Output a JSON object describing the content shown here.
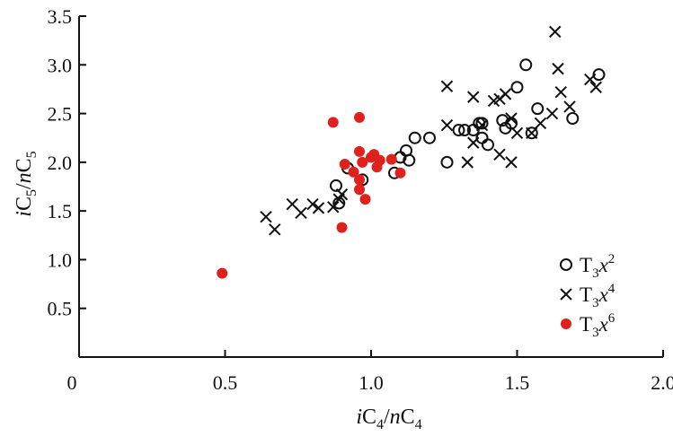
{
  "chart_data": {
    "type": "scatter",
    "title": "",
    "xlim": [
      0,
      2.0
    ],
    "ylim": [
      0,
      3.5
    ],
    "x_ticks": [
      {
        "value": 0,
        "label": "0"
      },
      {
        "value": 0.5,
        "label": "0.5"
      },
      {
        "value": 1.0,
        "label": "1.0"
      },
      {
        "value": 1.5,
        "label": "1.5"
      },
      {
        "value": 2.0,
        "label": "2.0"
      }
    ],
    "y_ticks": [
      {
        "value": 0.5,
        "label": "0.5"
      },
      {
        "value": 1.0,
        "label": "1.0"
      },
      {
        "value": 1.5,
        "label": "1.5"
      },
      {
        "value": 2.0,
        "label": "2.0"
      },
      {
        "value": 2.5,
        "label": "2.5"
      },
      {
        "value": 3.0,
        "label": "3.0"
      },
      {
        "value": 3.5,
        "label": "3.5"
      }
    ],
    "xlabel": {
      "i": "i",
      "c1": "C",
      "s1": "4",
      "slash": "/",
      "n": "n",
      "c2": "C",
      "s2": "4"
    },
    "ylabel": {
      "i": "i",
      "c1": "C",
      "s1": "5",
      "slash": "/",
      "n": "n",
      "c2": "C",
      "s2": "5"
    },
    "grid": false,
    "legend_position": "bottom-right",
    "colors": {
      "axis": "#111111",
      "circle": "#111111",
      "cross": "#111111",
      "dot": "#e0201c"
    },
    "series": [
      {
        "marker": "circle",
        "legend": {
          "base": "T",
          "sub": "3",
          "var": "x",
          "sup": "2"
        },
        "points": [
          [
            0.88,
            1.76
          ],
          [
            0.89,
            1.58
          ],
          [
            0.92,
            1.94
          ],
          [
            0.97,
            1.82
          ],
          [
            1.08,
            1.89
          ],
          [
            1.1,
            2.05
          ],
          [
            1.12,
            2.12
          ],
          [
            1.13,
            2.02
          ],
          [
            1.15,
            2.25
          ],
          [
            1.2,
            2.25
          ],
          [
            1.26,
            2.0
          ],
          [
            1.3,
            2.33
          ],
          [
            1.32,
            2.33
          ],
          [
            1.35,
            2.33
          ],
          [
            1.37,
            2.4
          ],
          [
            1.38,
            2.4
          ],
          [
            1.38,
            2.25
          ],
          [
            1.4,
            2.18
          ],
          [
            1.45,
            2.43
          ],
          [
            1.46,
            2.35
          ],
          [
            1.48,
            2.4
          ],
          [
            1.5,
            2.77
          ],
          [
            1.53,
            3.0
          ],
          [
            1.55,
            2.3
          ],
          [
            1.57,
            2.55
          ],
          [
            1.69,
            2.45
          ],
          [
            1.78,
            2.9
          ]
        ]
      },
      {
        "marker": "cross",
        "legend": {
          "base": "T",
          "sub": "3",
          "var": "x",
          "sup": "4"
        },
        "points": [
          [
            0.64,
            1.44
          ],
          [
            0.67,
            1.31
          ],
          [
            0.73,
            1.57
          ],
          [
            0.76,
            1.48
          ],
          [
            0.8,
            1.57
          ],
          [
            0.82,
            1.53
          ],
          [
            0.87,
            1.54
          ],
          [
            0.89,
            1.62
          ],
          [
            0.9,
            1.67
          ],
          [
            1.26,
            2.78
          ],
          [
            1.26,
            2.38
          ],
          [
            1.33,
            2.0
          ],
          [
            1.35,
            2.2
          ],
          [
            1.35,
            2.67
          ],
          [
            1.38,
            2.38
          ],
          [
            1.42,
            2.63
          ],
          [
            1.44,
            2.65
          ],
          [
            1.44,
            2.08
          ],
          [
            1.46,
            2.7
          ],
          [
            1.48,
            2.45
          ],
          [
            1.48,
            2.0
          ],
          [
            1.5,
            2.3
          ],
          [
            1.55,
            2.3
          ],
          [
            1.58,
            2.4
          ],
          [
            1.62,
            2.5
          ],
          [
            1.63,
            3.34
          ],
          [
            1.64,
            2.96
          ],
          [
            1.65,
            2.72
          ],
          [
            1.68,
            2.57
          ],
          [
            1.75,
            2.85
          ],
          [
            1.77,
            2.77
          ]
        ]
      },
      {
        "marker": "filled-circle",
        "legend": {
          "base": "T",
          "sub": "3",
          "var": "x",
          "sup": "6"
        },
        "points": [
          [
            0.49,
            0.86
          ],
          [
            0.87,
            2.41
          ],
          [
            0.9,
            1.33
          ],
          [
            0.91,
            1.98
          ],
          [
            0.94,
            1.9
          ],
          [
            0.96,
            2.46
          ],
          [
            0.96,
            2.11
          ],
          [
            0.96,
            1.82
          ],
          [
            0.96,
            1.72
          ],
          [
            0.97,
            2.0
          ],
          [
            0.98,
            1.62
          ],
          [
            1.0,
            2.05
          ],
          [
            1.01,
            2.08
          ],
          [
            1.02,
            1.95
          ],
          [
            1.03,
            2.02
          ],
          [
            1.07,
            2.03
          ],
          [
            1.1,
            1.89
          ]
        ]
      }
    ]
  }
}
